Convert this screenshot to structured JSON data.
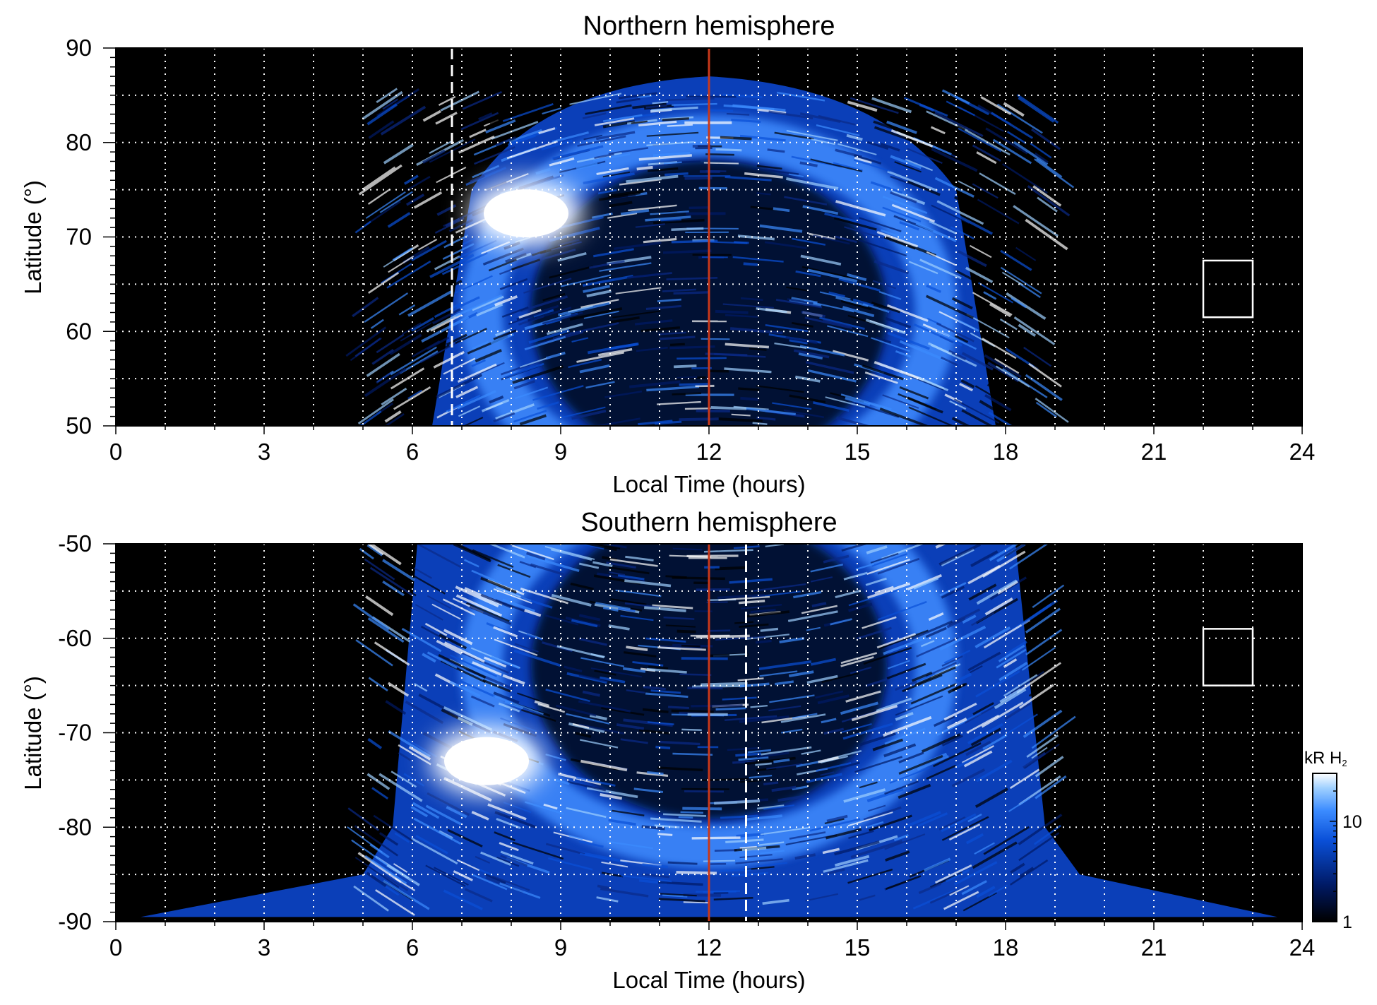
{
  "chart_data": [
    {
      "type": "heatmap",
      "title": "Northern hemisphere",
      "xlabel": "Local Time (hours)",
      "ylabel": "Latitude (°)",
      "xlim": [
        0,
        24
      ],
      "ylim": [
        50,
        90
      ],
      "x_ticks": [
        0,
        3,
        6,
        9,
        12,
        15,
        18,
        21,
        24
      ],
      "y_ticks": [
        50,
        60,
        70,
        80,
        90
      ],
      "x_tick_labels": [
        "0",
        "3",
        "6",
        "9",
        "12",
        "15",
        "18",
        "21",
        "24"
      ],
      "y_tick_labels": [
        "50",
        "60",
        "70",
        "80",
        "90"
      ],
      "grid": true,
      "noon_line_x": 12,
      "dashed_line_x": 6.8,
      "coverage": {
        "dawn_edge_lt": [
          6.4,
          7.2
        ],
        "dusk_edge_lt": [
          17.8,
          17.0
        ],
        "max_latitude": 87
      },
      "bright_spot": {
        "local_time": 8.3,
        "latitude": 72.5,
        "level": "saturated"
      },
      "box": {
        "lt_range": [
          22,
          23
        ],
        "lat_range": [
          61.5,
          67.5
        ]
      }
    },
    {
      "type": "heatmap",
      "title": "Southern hemisphere",
      "xlabel": "Local Time (hours)",
      "ylabel": "Latitude (°)",
      "xlim": [
        0,
        24
      ],
      "ylim": [
        -90,
        -50
      ],
      "x_ticks": [
        0,
        3,
        6,
        9,
        12,
        15,
        18,
        21,
        24
      ],
      "y_ticks": [
        -90,
        -80,
        -70,
        -60,
        -50
      ],
      "x_tick_labels": [
        "0",
        "3",
        "6",
        "9",
        "12",
        "15",
        "18",
        "21",
        "24"
      ],
      "y_tick_labels": [
        "-90",
        "-80",
        "-70",
        "-60",
        "-50"
      ],
      "grid": true,
      "noon_line_x": 12,
      "dashed_line_x": 12.75,
      "coverage": {
        "dawn_edge_lt": [
          6.1,
          5.0
        ],
        "dusk_edge_lt": [
          18.2,
          19.5
        ],
        "min_latitude": -89.5
      },
      "bright_spot": {
        "local_time": 7.5,
        "latitude": -73,
        "level": "saturated"
      },
      "box": {
        "lt_range": [
          22,
          23
        ],
        "lat_range": [
          -65,
          -59
        ]
      }
    }
  ],
  "colorbar": {
    "label_main": "kR H",
    "label_sub": "2",
    "scale": "log",
    "range": [
      1,
      30
    ],
    "tick_labels": [
      "1",
      "10"
    ],
    "colors": [
      "#000000",
      "#001a66",
      "#0a50d8",
      "#3c8cff",
      "#9fd0ff",
      "#ffffff"
    ]
  },
  "colors": {
    "noon_line": "#c8381a",
    "grid": "#ffffff",
    "background": "#000000",
    "box": "#ffffff"
  }
}
